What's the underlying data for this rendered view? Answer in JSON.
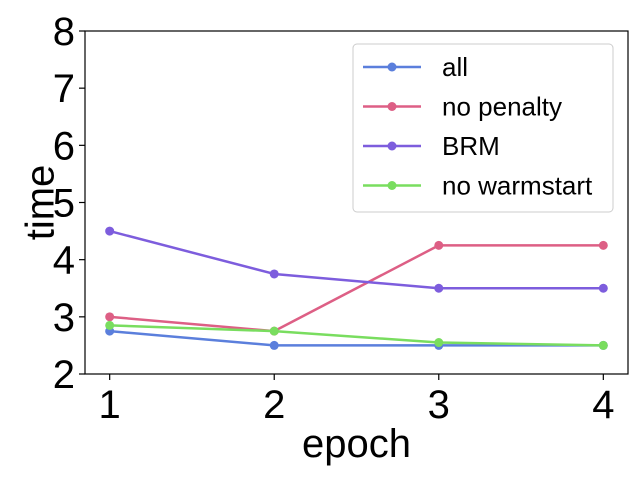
{
  "chart_data": {
    "type": "line",
    "xlabel": "epoch",
    "ylabel": "time",
    "x": [
      1,
      2,
      3,
      4
    ],
    "xticks": [
      "1",
      "2",
      "3",
      "4"
    ],
    "yticks": [
      "2",
      "3",
      "4",
      "5",
      "6",
      "7",
      "8"
    ],
    "xlim": [
      0.85,
      4.15
    ],
    "ylim": [
      2,
      8
    ],
    "grid": false,
    "legend_position": "top-right",
    "series": [
      {
        "name": "all",
        "color": "#5b7fdc",
        "values": [
          2.75,
          2.5,
          2.5,
          2.5
        ]
      },
      {
        "name": "no penalty",
        "color": "#dd5f85",
        "values": [
          3.0,
          2.75,
          4.25,
          4.25
        ]
      },
      {
        "name": "BRM",
        "color": "#7d5ddd",
        "values": [
          4.5,
          3.75,
          3.5,
          3.5
        ]
      },
      {
        "name": "no warmstart",
        "color": "#79dd5f",
        "values": [
          2.85,
          2.75,
          2.55,
          2.5
        ]
      }
    ]
  }
}
